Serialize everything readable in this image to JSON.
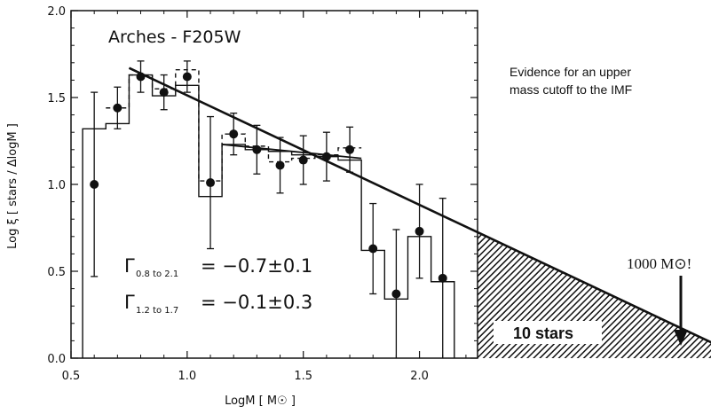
{
  "chart_data": {
    "type": "line",
    "title": "Arches - F205W",
    "xlabel": "LogM [ M☉ ]",
    "ylabel": "Log ξ [ stars / ΔlogM ]",
    "xlim": [
      0.5,
      2.25
    ],
    "ylim": [
      0.0,
      2.0
    ],
    "xticks": [
      "0.5",
      "1.0",
      "1.5",
      "2.0"
    ],
    "yticks": [
      "0.0",
      "0.5",
      "1.0",
      "1.5",
      "2.0"
    ],
    "grid": false,
    "points": {
      "x": [
        0.6,
        0.7,
        0.8,
        0.9,
        1.0,
        1.1,
        1.2,
        1.3,
        1.4,
        1.5,
        1.6,
        1.7,
        1.8,
        1.9,
        2.0,
        2.1
      ],
      "y": [
        1.0,
        1.44,
        1.62,
        1.53,
        1.62,
        1.01,
        1.29,
        1.2,
        1.11,
        1.14,
        1.16,
        1.2,
        0.63,
        0.37,
        0.73,
        0.46
      ],
      "yerr": [
        0.53,
        0.12,
        0.09,
        0.1,
        0.09,
        0.38,
        0.12,
        0.14,
        0.16,
        0.14,
        0.14,
        0.13,
        0.26,
        0.37,
        0.27,
        0.46
      ]
    },
    "histogram_solid": {
      "edges": [
        0.55,
        0.65,
        0.75,
        0.85,
        0.95,
        1.05,
        1.15,
        1.25,
        1.35,
        1.45,
        1.55,
        1.65,
        1.75,
        1.85,
        1.95,
        2.05,
        2.15
      ],
      "values": [
        1.32,
        1.35,
        1.63,
        1.51,
        1.57,
        0.93,
        1.23,
        1.2,
        1.19,
        1.17,
        1.16,
        1.14,
        0.62,
        0.34,
        0.7,
        0.44
      ]
    },
    "histogram_dashed": {
      "edges": [
        0.65,
        0.75,
        0.85,
        0.95,
        1.05,
        1.15,
        1.25,
        1.35,
        1.45,
        1.55,
        1.65,
        1.75
      ],
      "values": [
        1.44,
        1.63,
        1.55,
        1.66,
        1.02,
        1.29,
        1.22,
        1.13,
        1.15,
        1.17,
        1.21
      ]
    },
    "fits": [
      {
        "name": "Γ 0.8 to 2.1",
        "x": [
          0.75,
          3.4
        ],
        "y": [
          1.67,
          0.0
        ]
      },
      {
        "name": "Γ 1.2 to 1.7",
        "x": [
          1.15,
          1.75
        ],
        "y": [
          1.23,
          1.15
        ]
      }
    ],
    "annotations": {
      "evidence_line1": "Evidence for an upper",
      "evidence_line2": "mass cutoff to the IMF",
      "fit1_gamma": "Γ",
      "fit1_sub": "0.8 to 2.1",
      "fit1_value": "= −0.7±0.1",
      "fit2_gamma": "Γ",
      "fit2_sub": "1.2 to 1.7",
      "fit2_value": "= −0.1±0.3",
      "mass_label": "1000 M⊙!",
      "stars_label": "10 stars"
    }
  },
  "colors": {
    "ink": "#111111",
    "background": "#ffffff"
  }
}
